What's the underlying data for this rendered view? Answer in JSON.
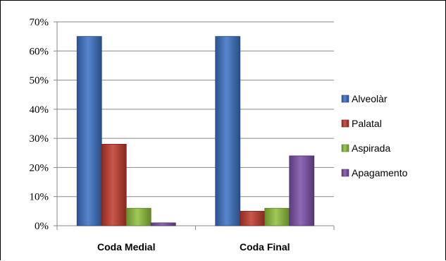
{
  "chart_data": {
    "type": "bar",
    "categories": [
      "Coda Medial",
      "Coda Final"
    ],
    "series": [
      {
        "name": "Alveolàr",
        "values": [
          0.65,
          0.65
        ],
        "color": "#3a6fc4"
      },
      {
        "name": "Palatal",
        "values": [
          0.28,
          0.05
        ],
        "color": "#c0392b"
      },
      {
        "name": "Aspirada",
        "values": [
          0.06,
          0.06
        ],
        "color": "#8dbf3a"
      },
      {
        "name": "Apagamento",
        "values": [
          0.01,
          0.24
        ],
        "color": "#7b4fa8"
      }
    ],
    "yticks": [
      "0%",
      "10%",
      "20%",
      "30%",
      "40%",
      "50%",
      "60%",
      "70%"
    ],
    "ylim": [
      0,
      0.7
    ],
    "grid": true,
    "legend": "right",
    "title": "",
    "xlabel": "",
    "ylabel": ""
  }
}
